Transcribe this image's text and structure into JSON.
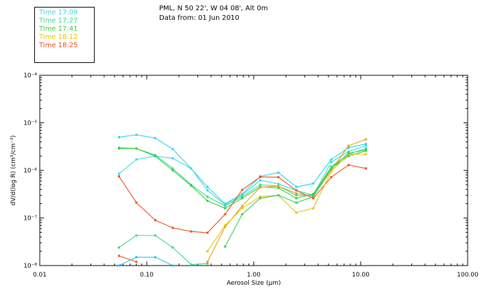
{
  "header": {
    "location": "PML, N 50 22', W 04 08', Alt 0m",
    "date": "Data from: 01 Jun 2010"
  },
  "legend": [
    {
      "label": "Time 17:09",
      "color": "#33d9e6"
    },
    {
      "label": "Time 17:27",
      "color": "#33d98c"
    },
    {
      "label": "Time 17:41",
      "color": "#33cc33"
    },
    {
      "label": "Time 18:12",
      "color": "#e6c000"
    },
    {
      "label": "Time 18:25",
      "color": "#e64d1a"
    }
  ],
  "chart_data": {
    "type": "line",
    "xlabel": "Aerosol Size (µm)",
    "ylabel": "dV/d(log R)  (cm³/cm⁻³)",
    "x_scale": "log",
    "y_scale": "log",
    "xlim": [
      0.01,
      100
    ],
    "ylim": [
      1e-08,
      0.0001
    ],
    "x_ticks": [
      {
        "value": 0.01,
        "label": "0.01"
      },
      {
        "value": 0.1,
        "label": "0.10"
      },
      {
        "value": 1,
        "label": "1.00"
      },
      {
        "value": 10,
        "label": "10.00"
      },
      {
        "value": 100,
        "label": "100.00"
      }
    ],
    "y_ticks": [
      {
        "value": 1e-08,
        "label": "10⁻⁸"
      },
      {
        "value": 1e-07,
        "label": "10⁻⁷"
      },
      {
        "value": 1e-06,
        "label": "10⁻⁶"
      },
      {
        "value": 1e-05,
        "label": "10⁻⁵"
      },
      {
        "value": 0.0001,
        "label": "10⁻⁴"
      }
    ],
    "series": [
      {
        "color": "#22d4ee",
        "x": [
          0.055,
          0.08,
          0.12,
          0.175,
          0.26,
          0.37,
          0.54,
          0.78,
          1.15,
          1.7,
          2.5,
          3.6,
          5.3,
          7.7,
          11.2
        ],
        "y": [
          5e-06,
          5.6e-06,
          4.8e-06,
          2.8e-06,
          1.1e-06,
          4.5e-07,
          2e-07,
          3.2e-07,
          7.5e-07,
          9e-07,
          4.5e-07,
          5.3e-07,
          1.7e-06,
          3e-06,
          3.6e-06
        ]
      },
      {
        "color": "#33d9e6",
        "x": [
          0.055,
          0.08,
          0.12,
          0.175,
          0.26,
          0.37,
          0.54,
          0.78,
          1.15,
          1.7,
          2.5,
          3.6,
          5.3,
          7.7,
          11.2
        ],
        "y": [
          8.5e-07,
          1.7e-06,
          2e-06,
          1.8e-06,
          1.1e-06,
          3.8e-07,
          1.9e-07,
          3e-07,
          6.2e-07,
          5.2e-07,
          3.8e-07,
          3e-07,
          1.5e-06,
          2.5e-06,
          3.3e-06
        ]
      },
      {
        "color": "#33d98c",
        "x": [
          0.055,
          0.08,
          0.12,
          0.175,
          0.26,
          0.37,
          0.54,
          0.78,
          1.15,
          1.7,
          2.5,
          3.6,
          5.3,
          7.7,
          11.2
        ],
        "y": [
          3e-06,
          2.9e-06,
          2.1e-06,
          1.1e-06,
          5e-07,
          2.8e-07,
          1.8e-07,
          2.8e-07,
          5e-07,
          4.7e-07,
          3e-07,
          3e-07,
          1.2e-06,
          2.2e-06,
          2.9e-06
        ]
      },
      {
        "color": "#33cc33",
        "x": [
          0.055,
          0.08,
          0.12,
          0.175,
          0.26,
          0.37,
          0.54,
          0.78,
          1.15,
          1.7,
          2.5,
          3.6,
          5.3,
          7.7,
          11.2
        ],
        "y": [
          2.9e-06,
          2.9e-06,
          2e-06,
          1e-06,
          4.8e-07,
          2.3e-07,
          1.6e-07,
          2.6e-07,
          4.5e-07,
          4.3e-07,
          2.6e-07,
          3.2e-07,
          1.1e-06,
          2e-06,
          2.6e-06
        ]
      },
      {
        "color": "#e64d1a",
        "x": [
          0.055,
          0.08,
          0.12,
          0.175,
          0.26,
          0.37,
          0.54,
          0.78,
          1.15,
          1.7,
          2.5,
          3.6,
          5.3,
          7.7,
          11.2
        ],
        "y": [
          7.5e-07,
          2.1e-07,
          9e-08,
          6.2e-08,
          5.2e-08,
          4.9e-08,
          1.2e-07,
          3.9e-07,
          7.3e-07,
          7.2e-07,
          3.8e-07,
          2.6e-07,
          7.2e-07,
          1.3e-06,
          1.1e-06
        ]
      },
      {
        "color": "#e65c1a",
        "x": [
          0.055,
          0.08
        ],
        "y": [
          1.6e-08,
          1.2e-08
        ]
      },
      {
        "color": "#33d980",
        "x": [
          0.055,
          0.08,
          0.12,
          0.175,
          0.26,
          0.37
        ],
        "y": [
          2.4e-08,
          4.3e-08,
          4.3e-08,
          2.4e-08,
          1.05e-08,
          1.1e-08
        ]
      },
      {
        "color": "#22c4e6",
        "x": [
          0.055,
          0.08,
          0.12,
          0.175
        ],
        "y": [
          1e-08,
          1.5e-08,
          1.5e-08,
          1e-08
        ]
      },
      {
        "color": "#e6a000",
        "x": [
          0.37,
          0.54,
          0.78,
          1.15,
          1.7,
          2.5,
          3.6,
          5.3,
          7.7,
          11.2
        ],
        "y": [
          1.2e-08,
          6.5e-08,
          1.8e-07,
          4.4e-07,
          4.7e-07,
          3.3e-07,
          2.9e-07,
          1e-06,
          3.3e-06,
          4.5e-06
        ]
      },
      {
        "color": "#e6c000",
        "x": [
          0.37,
          0.54,
          0.78,
          1.15,
          1.7,
          2.5,
          3.6,
          5.3,
          7.7,
          11.2
        ],
        "y": [
          2e-08,
          7e-08,
          1.6e-07,
          2.8e-07,
          3e-07,
          1.3e-07,
          1.6e-07,
          9.5e-07,
          2.2e-06,
          2.2e-06
        ]
      },
      {
        "color": "#33cc55",
        "x": [
          0.54,
          0.78,
          1.15,
          1.7,
          2.5,
          3.6,
          5.3,
          7.7,
          11.2
        ],
        "y": [
          2.5e-08,
          1.2e-07,
          2.6e-07,
          3e-07,
          2.1e-07,
          2.8e-07,
          1.1e-06,
          2.3e-06,
          2.7e-06
        ]
      }
    ]
  }
}
